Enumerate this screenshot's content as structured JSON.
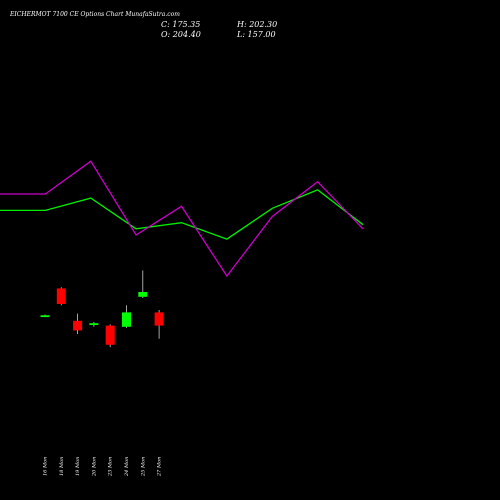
{
  "header": {
    "title": "EICHERMOT 7100  CE Options  Chart MunafaSutra.com",
    "close_text": "C: 175.35",
    "open_text": "O: 204.40",
    "high_text": "H: 202.30",
    "low_text": "L: 157.00"
  },
  "colors": {
    "background": "#000000",
    "up_candle": "#00ff00",
    "down_candle": "#ff0000",
    "green_line": "#00ee00",
    "magenta_line": "#cc00cc"
  },
  "chart_data": [
    {
      "type": "line",
      "title": "",
      "x_index": [
        0,
        1,
        2,
        3,
        4,
        5,
        6,
        7,
        8
      ],
      "series": [
        {
          "color": "#00ee00",
          "values": [
            88,
            88,
            82,
            97,
            94,
            102,
            87,
            78,
            95
          ]
        },
        {
          "color": "#cc00cc",
          "values": [
            80,
            80,
            64,
            100,
            86,
            120,
            91,
            74,
            97
          ]
        }
      ]
    },
    {
      "type": "candlestick",
      "title": "",
      "categories": [
        "16 Mon",
        "18 Mon",
        "19 Mon",
        "20 Mon",
        "23 Mon",
        "24 Mon",
        "25 Mon",
        "27 Mon"
      ],
      "ylim": [
        0,
        100
      ],
      "candles": [
        {
          "open": 45.6,
          "high": 46.3,
          "low": 45.0,
          "close": 45.6
        },
        {
          "open": 68,
          "high": 69,
          "low": 54,
          "close": 55
        },
        {
          "open": 41,
          "high": 47,
          "low": 30,
          "close": 33
        },
        {
          "open": 38,
          "high": 40,
          "low": 36,
          "close": 39
        },
        {
          "open": 37,
          "high": 38,
          "low": 19,
          "close": 21
        },
        {
          "open": 36,
          "high": 54,
          "low": 35,
          "close": 48
        },
        {
          "open": 61,
          "high": 83,
          "low": 60,
          "close": 65
        },
        {
          "open": 48,
          "high": 50,
          "low": 26,
          "close": 37
        }
      ]
    }
  ]
}
